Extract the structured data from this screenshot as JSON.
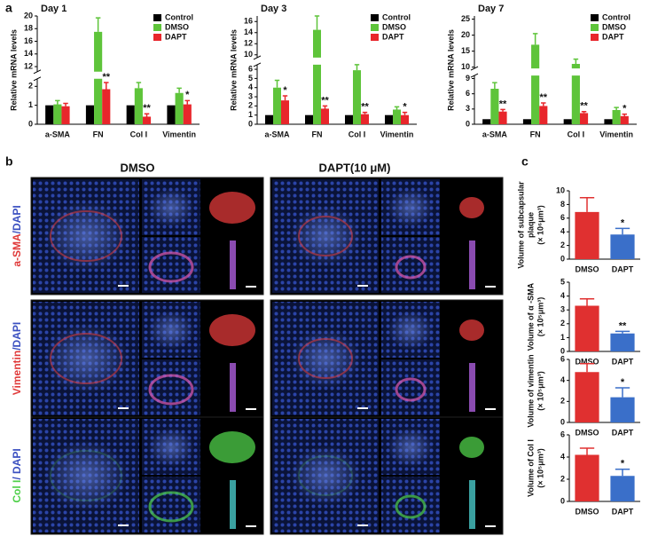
{
  "panel_labels": [
    "a",
    "b",
    "c"
  ],
  "panel_b": {
    "columns": [
      "DMSO",
      "DAPT(10 μM)"
    ],
    "rows": [
      [
        "a-SMA",
        "/DAPI"
      ],
      [
        "Vimentin",
        "/DAPI"
      ],
      [
        "Col I",
        "/ DAPI"
      ]
    ]
  },
  "chart_data": [
    {
      "type": "bar",
      "title": "Day 1",
      "ylabel": "Relative mRNA levels",
      "legend": "upper right",
      "categories": [
        "a-SMA",
        "FN",
        "Col I",
        "Vimentin"
      ],
      "series": [
        {
          "name": "Control",
          "color": "#000000",
          "values": [
            1,
            1,
            1,
            1
          ]
        },
        {
          "name": "DMSO",
          "color": "#5ec43a",
          "values": [
            1.05,
            17.5,
            1.9,
            1.65
          ],
          "errors": [
            0.2,
            2.2,
            0.3,
            0.25
          ]
        },
        {
          "name": "DAPT",
          "color": "#e8262b",
          "values": [
            0.95,
            1.85,
            0.4,
            1.05
          ],
          "errors": [
            0.15,
            0.35,
            0.15,
            0.2
          ],
          "annotations": [
            null,
            "**",
            "**",
            "*"
          ]
        }
      ],
      "ylim": [
        0,
        20
      ],
      "ybreak": [
        2.4,
        11.2
      ],
      "yticks": [
        0,
        1,
        2,
        12,
        14,
        16,
        18,
        20
      ]
    },
    {
      "type": "bar",
      "title": "Day 3",
      "ylabel": "Relative mRNA levels",
      "legend": "upper right",
      "categories": [
        "a-SMA",
        "FN",
        "Col I",
        "Vimentin"
      ],
      "series": [
        {
          "name": "Control",
          "color": "#000000",
          "values": [
            1,
            1,
            1,
            1
          ]
        },
        {
          "name": "DMSO",
          "color": "#5ec43a",
          "values": [
            4.0,
            14.5,
            5.9,
            1.6
          ],
          "errors": [
            0.8,
            2.5,
            0.6,
            0.3
          ]
        },
        {
          "name": "DAPT",
          "color": "#e8262b",
          "values": [
            2.6,
            1.7,
            1.1,
            1.0
          ],
          "errors": [
            0.5,
            0.3,
            0.2,
            0.3
          ],
          "annotations": [
            "*",
            "**",
            "**",
            "*"
          ]
        }
      ],
      "ylim": [
        0,
        17
      ],
      "ybreak": [
        6.5,
        9.5
      ],
      "yticks": [
        0,
        1,
        2,
        3,
        4,
        5,
        6,
        10,
        12,
        14,
        16
      ]
    },
    {
      "type": "bar",
      "title": "Day 7",
      "ylabel": "Relative mRNA levels",
      "legend": "upper right",
      "categories": [
        "a-SMA",
        "FN",
        "Col I",
        "Vimentin"
      ],
      "series": [
        {
          "name": "Control",
          "color": "#000000",
          "values": [
            1,
            1,
            1,
            1
          ]
        },
        {
          "name": "DMSO",
          "color": "#5ec43a",
          "values": [
            7.0,
            17,
            11,
            2.8
          ],
          "errors": [
            1.2,
            3.5,
            1.5,
            0.5
          ]
        },
        {
          "name": "DAPT",
          "color": "#e8262b",
          "values": [
            2.5,
            3.6,
            2.2,
            1.6
          ],
          "errors": [
            0.4,
            0.6,
            0.3,
            0.4
          ],
          "annotations": [
            "**",
            "**",
            "**",
            "*"
          ]
        }
      ],
      "ylim": [
        0,
        26
      ],
      "ybreak": [
        9.6,
        9.6
      ],
      "yticks": [
        0,
        3,
        6,
        9,
        10,
        15,
        20,
        25
      ]
    },
    {
      "type": "bar",
      "ylabel": [
        "Volume of subcapsular",
        "plaque",
        "(× 10⁶μm³)"
      ],
      "categories": [
        "DMSO",
        "DAPT"
      ],
      "colors": [
        "#e03030",
        "#3a6fc9"
      ],
      "values": [
        6.9,
        3.6
      ],
      "errors": [
        2.1,
        0.9
      ],
      "annotations": [
        null,
        "*"
      ],
      "ylim": [
        0,
        10
      ],
      "yticks": [
        0,
        2,
        4,
        6,
        8,
        10
      ]
    },
    {
      "type": "bar",
      "ylabel": [
        "Volume of α -SMA",
        "(× 10⁵μm³)"
      ],
      "categories": [
        "DMSO",
        "DAPT"
      ],
      "colors": [
        "#e03030",
        "#3a6fc9"
      ],
      "values": [
        3.3,
        1.3
      ],
      "errors": [
        0.5,
        0.15
      ],
      "annotations": [
        null,
        "**"
      ],
      "ylim": [
        0,
        5
      ],
      "yticks": [
        0,
        1,
        2,
        3,
        4,
        5
      ]
    },
    {
      "type": "bar",
      "ylabel": [
        "Volume of vimentin",
        "(× 10⁵μm³)"
      ],
      "categories": [
        "DMSO",
        "DAPT"
      ],
      "colors": [
        "#e03030",
        "#3a6fc9"
      ],
      "values": [
        4.8,
        2.4
      ],
      "errors": [
        0.8,
        0.9
      ],
      "annotations": [
        null,
        "*"
      ],
      "ylim": [
        0,
        6
      ],
      "yticks": [
        0,
        2,
        4,
        6
      ]
    },
    {
      "type": "bar",
      "ylabel": [
        "Volume of Col I",
        "(× 10⁵μm³)"
      ],
      "categories": [
        "DMSO",
        "DAPT"
      ],
      "colors": [
        "#e03030",
        "#3a6fc9"
      ],
      "values": [
        4.2,
        2.3
      ],
      "errors": [
        0.6,
        0.6
      ],
      "annotations": [
        null,
        "*"
      ],
      "ylim": [
        0,
        6
      ],
      "yticks": [
        0,
        2,
        4,
        6
      ]
    }
  ]
}
